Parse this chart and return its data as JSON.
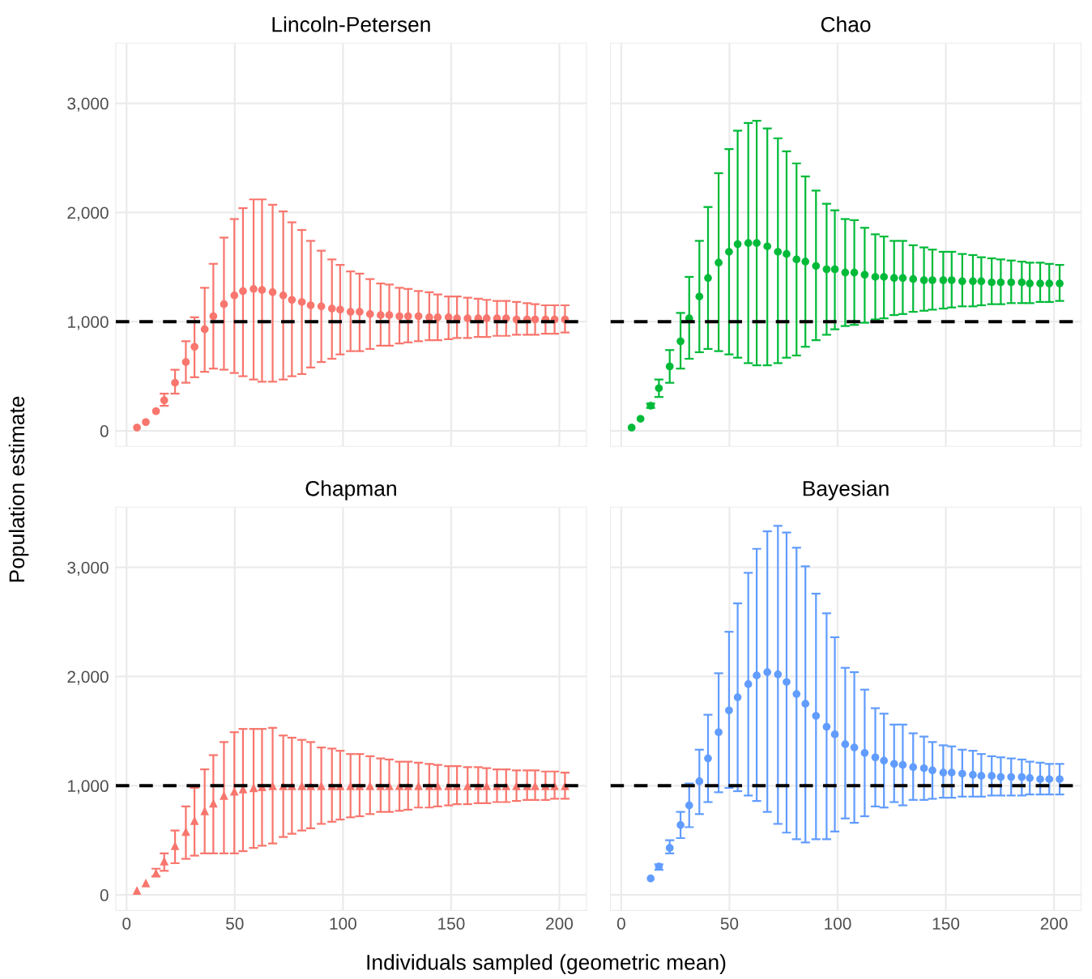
{
  "chart_data": [
    {
      "type": "scatter",
      "title": "Lincoln-Petersen",
      "ylabel": "Population estimate",
      "marker": "circle",
      "grid": true,
      "tick_labels": "y",
      "x": [
        4.8,
        8.9,
        13.6,
        17.4,
        22.4,
        27.4,
        31.4,
        36.1,
        40.1,
        45.0,
        49.8,
        53.8,
        58.7,
        62.6,
        67.5,
        72.4,
        76.4,
        81.0,
        85.1,
        90.0,
        94.9,
        98.7,
        103.5,
        107.7,
        112.5,
        117.4,
        121.4,
        126.1,
        130.1,
        134.9,
        139.9,
        143.8,
        148.8,
        152.7,
        157.6,
        162.5,
        166.4,
        171.2,
        175.4,
        180.2,
        185.1,
        188.8,
        193.6,
        197.8,
        202.6
      ],
      "series": [
        {
          "color": "#f8766d",
          "values": [
            30,
            80,
            180,
            280,
            440,
            630,
            770,
            930,
            1050,
            1160,
            1240,
            1280,
            1300,
            1290,
            1270,
            1240,
            1200,
            1180,
            1150,
            1140,
            1120,
            1110,
            1090,
            1090,
            1070,
            1060,
            1060,
            1050,
            1050,
            1050,
            1040,
            1040,
            1040,
            1030,
            1030,
            1030,
            1030,
            1030,
            1030,
            1020,
            1020,
            1020,
            1020,
            1020,
            1020
          ],
          "errors": [
            null,
            null,
            null,
            [
              230,
              340
            ],
            [
              340,
              560
            ],
            [
              440,
              820
            ],
            [
              490,
              1040
            ],
            [
              540,
              1310
            ],
            [
              570,
              1530
            ],
            [
              560,
              1770
            ],
            [
              530,
              1940
            ],
            [
              500,
              2040
            ],
            [
              470,
              2120
            ],
            [
              450,
              2120
            ],
            [
              450,
              2070
            ],
            [
              470,
              2010
            ],
            [
              500,
              1910
            ],
            [
              520,
              1840
            ],
            [
              580,
              1740
            ],
            [
              630,
              1650
            ],
            [
              660,
              1570
            ],
            [
              700,
              1520
            ],
            [
              730,
              1460
            ],
            [
              730,
              1440
            ],
            [
              750,
              1390
            ],
            [
              780,
              1350
            ],
            [
              780,
              1340
            ],
            [
              800,
              1310
            ],
            [
              810,
              1300
            ],
            [
              820,
              1280
            ],
            [
              830,
              1270
            ],
            [
              830,
              1250
            ],
            [
              840,
              1230
            ],
            [
              850,
              1230
            ],
            [
              850,
              1220
            ],
            [
              860,
              1210
            ],
            [
              860,
              1200
            ],
            [
              870,
              1190
            ],
            [
              870,
              1190
            ],
            [
              880,
              1180
            ],
            [
              880,
              1170
            ],
            [
              880,
              1160
            ],
            [
              890,
              1150
            ],
            [
              890,
              1150
            ],
            [
              900,
              1150
            ]
          ]
        }
      ],
      "xlim": [
        -5,
        212.5
      ],
      "ylim": [
        -143,
        3552
      ],
      "xticks": [
        0,
        50,
        100,
        150,
        200
      ],
      "yticks": [
        {
          "value": 0,
          "label": "0"
        },
        {
          "value": 1000,
          "label": "1,000"
        },
        {
          "value": 2000,
          "label": "2,000"
        },
        {
          "value": 3000,
          "label": "3,000"
        }
      ],
      "ref_lines": [
        {
          "axis": "y",
          "value": 1000,
          "color": "#000000",
          "line_style": "dashed"
        }
      ]
    },
    {
      "type": "scatter",
      "title": "Chao",
      "marker": "circle",
      "grid": true,
      "tick_labels": false,
      "x": [
        4.8,
        8.9,
        13.6,
        17.4,
        22.4,
        27.4,
        31.4,
        36.1,
        40.1,
        45.0,
        49.8,
        53.8,
        58.7,
        62.6,
        67.5,
        72.4,
        76.4,
        81.0,
        85.1,
        90.0,
        94.9,
        98.7,
        103.5,
        107.7,
        112.5,
        117.4,
        121.4,
        126.1,
        130.1,
        134.9,
        139.9,
        143.8,
        148.8,
        152.7,
        157.6,
        162.5,
        166.4,
        171.2,
        175.4,
        180.2,
        185.1,
        188.8,
        193.6,
        197.8,
        202.6
      ],
      "series": [
        {
          "color": "#00ba38",
          "values": [
            30,
            110,
            230,
            390,
            590,
            820,
            1030,
            1230,
            1400,
            1540,
            1640,
            1710,
            1720,
            1720,
            1690,
            1640,
            1620,
            1570,
            1550,
            1510,
            1480,
            1480,
            1450,
            1450,
            1430,
            1410,
            1410,
            1400,
            1400,
            1390,
            1380,
            1380,
            1380,
            1380,
            1370,
            1370,
            1370,
            1360,
            1360,
            1360,
            1360,
            1350,
            1350,
            1350,
            1350
          ],
          "errors": [
            null,
            null,
            [
              210,
              250
            ],
            [
              310,
              470
            ],
            [
              440,
              740
            ],
            [
              570,
              1080
            ],
            [
              660,
              1410
            ],
            [
              720,
              1740
            ],
            [
              750,
              2050
            ],
            [
              730,
              2360
            ],
            [
              700,
              2580
            ],
            [
              670,
              2750
            ],
            [
              620,
              2820
            ],
            [
              600,
              2840
            ],
            [
              600,
              2770
            ],
            [
              620,
              2680
            ],
            [
              670,
              2560
            ],
            [
              690,
              2450
            ],
            [
              770,
              2330
            ],
            [
              830,
              2200
            ],
            [
              880,
              2080
            ],
            [
              930,
              2020
            ],
            [
              960,
              1940
            ],
            [
              970,
              1930
            ],
            [
              990,
              1860
            ],
            [
              1020,
              1800
            ],
            [
              1030,
              1780
            ],
            [
              1060,
              1740
            ],
            [
              1070,
              1740
            ],
            [
              1090,
              1700
            ],
            [
              1100,
              1680
            ],
            [
              1110,
              1660
            ],
            [
              1120,
              1640
            ],
            [
              1130,
              1640
            ],
            [
              1140,
              1620
            ],
            [
              1140,
              1610
            ],
            [
              1150,
              1590
            ],
            [
              1160,
              1580
            ],
            [
              1160,
              1570
            ],
            [
              1170,
              1560
            ],
            [
              1170,
              1550
            ],
            [
              1170,
              1540
            ],
            [
              1180,
              1540
            ],
            [
              1180,
              1530
            ],
            [
              1190,
              1520
            ]
          ]
        }
      ],
      "xlim": [
        -5,
        212.5
      ],
      "ylim": [
        -143,
        3552
      ],
      "xticks": [
        0,
        50,
        100,
        150,
        200
      ],
      "yticks": [
        0,
        1000,
        2000,
        3000
      ],
      "ref_lines": [
        {
          "axis": "y",
          "value": 1000,
          "color": "#000000",
          "line_style": "dashed"
        }
      ]
    },
    {
      "type": "scatter",
      "title": "Chapman",
      "xlabel": "Individuals sampled (geometric mean)",
      "marker": "triangle",
      "grid": true,
      "x": [
        4.8,
        8.9,
        13.6,
        17.4,
        22.4,
        27.4,
        31.4,
        36.1,
        40.1,
        45.0,
        49.8,
        53.8,
        58.7,
        62.6,
        67.5,
        72.4,
        76.4,
        81.0,
        85.1,
        90.0,
        94.9,
        98.7,
        103.5,
        107.7,
        112.5,
        117.4,
        121.4,
        126.1,
        130.1,
        134.9,
        139.9,
        143.8,
        148.8,
        152.7,
        157.6,
        162.5,
        166.4,
        171.2,
        175.4,
        180.2,
        185.1,
        188.8,
        193.6,
        197.8,
        202.6
      ],
      "series": [
        {
          "color": "#f8766d",
          "values": [
            40,
            110,
            200,
            310,
            450,
            580,
            680,
            770,
            840,
            910,
            950,
            970,
            980,
            990,
            1000,
            1000,
            1000,
            1000,
            1000,
            1000,
            1000,
            1000,
            1000,
            1000,
            1000,
            1000,
            1000,
            1000,
            1000,
            1000,
            1000,
            1000,
            1000,
            1000,
            1000,
            1000,
            1000,
            1000,
            1000,
            1000,
            1000,
            1000,
            1000,
            1000,
            1000
          ],
          "errors": [
            null,
            null,
            [
              170,
              240
            ],
            [
              220,
              380
            ],
            [
              290,
              590
            ],
            [
              330,
              810
            ],
            [
              360,
              980
            ],
            [
              380,
              1150
            ],
            [
              380,
              1280
            ],
            [
              380,
              1400
            ],
            [
              380,
              1490
            ],
            [
              400,
              1520
            ],
            [
              430,
              1520
            ],
            [
              450,
              1520
            ],
            [
              470,
              1530
            ],
            [
              530,
              1460
            ],
            [
              560,
              1440
            ],
            [
              590,
              1420
            ],
            [
              610,
              1400
            ],
            [
              650,
              1350
            ],
            [
              670,
              1340
            ],
            [
              690,
              1320
            ],
            [
              710,
              1290
            ],
            [
              720,
              1290
            ],
            [
              740,
              1270
            ],
            [
              760,
              1250
            ],
            [
              760,
              1240
            ],
            [
              770,
              1220
            ],
            [
              780,
              1220
            ],
            [
              800,
              1210
            ],
            [
              800,
              1200
            ],
            [
              810,
              1190
            ],
            [
              820,
              1180
            ],
            [
              830,
              1180
            ],
            [
              830,
              1170
            ],
            [
              840,
              1170
            ],
            [
              840,
              1160
            ],
            [
              850,
              1150
            ],
            [
              850,
              1150
            ],
            [
              860,
              1140
            ],
            [
              870,
              1140
            ],
            [
              870,
              1140
            ],
            [
              870,
              1130
            ],
            [
              880,
              1130
            ],
            [
              880,
              1120
            ]
          ]
        }
      ],
      "xlim": [
        -5,
        212.5
      ],
      "ylim": [
        -143,
        3552
      ],
      "xticks": [
        0,
        50,
        100,
        150,
        200
      ],
      "yticks": [
        {
          "value": 0,
          "label": "0"
        },
        {
          "value": 1000,
          "label": "1,000"
        },
        {
          "value": 2000,
          "label": "2,000"
        },
        {
          "value": 3000,
          "label": "3,000"
        }
      ],
      "ref_lines": [
        {
          "axis": "y",
          "value": 1000,
          "color": "#000000",
          "line_style": "dashed"
        }
      ]
    },
    {
      "type": "scatter",
      "title": "Bayesian",
      "marker": "circle",
      "grid": true,
      "tick_labels": "x",
      "series": [
        {
          "color": "#619cff",
          "x": [
            13.6,
            17.4,
            22.4,
            27.4,
            31.4,
            36.1,
            40.1,
            45.0,
            49.8,
            53.8,
            58.7,
            62.6,
            67.5,
            72.4,
            76.4,
            81.0,
            85.1,
            90.0,
            94.9,
            98.7,
            103.5,
            107.7,
            112.5,
            117.4,
            121.4,
            126.1,
            130.1,
            134.9,
            139.9,
            143.8,
            148.8,
            152.7,
            157.6,
            162.5,
            166.4,
            171.2,
            175.4,
            180.2,
            185.1,
            188.8,
            193.6,
            197.8,
            202.6
          ],
          "values": [
            150,
            260,
            430,
            640,
            820,
            1040,
            1250,
            1490,
            1690,
            1810,
            1930,
            2010,
            2040,
            2020,
            1950,
            1840,
            1750,
            1640,
            1540,
            1470,
            1380,
            1350,
            1300,
            1260,
            1230,
            1200,
            1190,
            1170,
            1160,
            1140,
            1120,
            1120,
            1110,
            1100,
            1090,
            1090,
            1080,
            1080,
            1080,
            1070,
            1060,
            1060,
            1060
          ],
          "errors": [
            null,
            [
              230,
              280
            ],
            [
              380,
              500
            ],
            [
              520,
              760
            ],
            [
              620,
              1020
            ],
            [
              740,
              1330
            ],
            [
              850,
              1650
            ],
            [
              940,
              2030
            ],
            [
              980,
              2410
            ],
            [
              950,
              2670
            ],
            [
              910,
              2950
            ],
            [
              860,
              3170
            ],
            [
              760,
              3330
            ],
            [
              650,
              3380
            ],
            [
              570,
              3320
            ],
            [
              510,
              3180
            ],
            [
              480,
              3010
            ],
            [
              510,
              2760
            ],
            [
              510,
              2580
            ],
            [
              580,
              2360
            ],
            [
              700,
              2080
            ],
            [
              660,
              2040
            ],
            [
              720,
              1880
            ],
            [
              810,
              1710
            ],
            [
              800,
              1660
            ],
            [
              850,
              1560
            ],
            [
              820,
              1560
            ],
            [
              870,
              1480
            ],
            [
              870,
              1450
            ],
            [
              880,
              1400
            ],
            [
              890,
              1370
            ],
            [
              890,
              1360
            ],
            [
              900,
              1330
            ],
            [
              900,
              1320
            ],
            [
              900,
              1290
            ],
            [
              910,
              1270
            ],
            [
              910,
              1260
            ],
            [
              910,
              1250
            ],
            [
              910,
              1240
            ],
            [
              920,
              1220
            ],
            [
              920,
              1210
            ],
            [
              920,
              1200
            ],
            [
              920,
              1200
            ]
          ]
        }
      ],
      "xlim": [
        -5,
        212.5
      ],
      "ylim": [
        -143,
        3552
      ],
      "xticks": [
        0,
        50,
        100,
        150,
        200
      ],
      "yticks": [
        0,
        1000,
        2000,
        3000
      ],
      "ref_lines": [
        {
          "axis": "y",
          "value": 1000,
          "color": "#000000",
          "line_style": "dashed"
        }
      ]
    }
  ]
}
